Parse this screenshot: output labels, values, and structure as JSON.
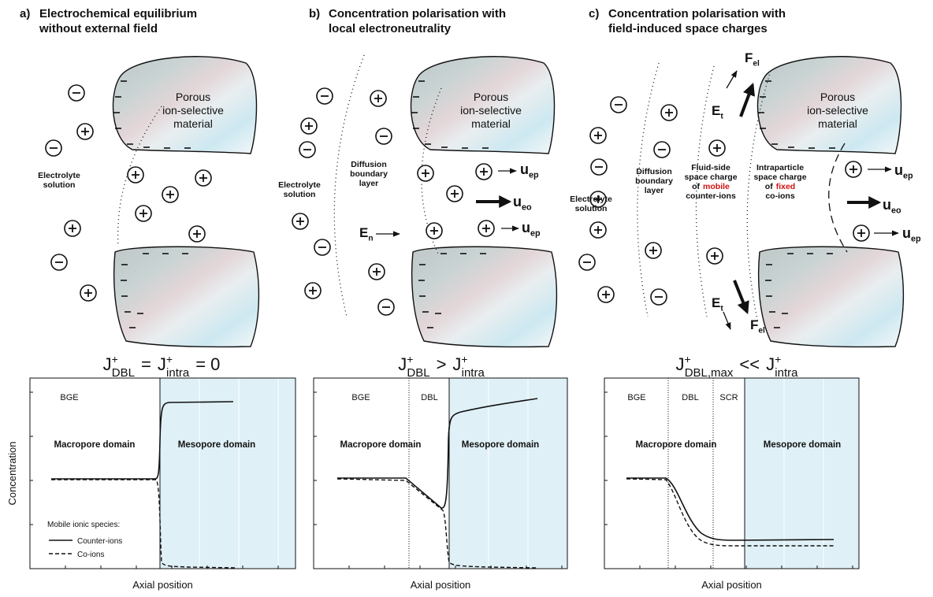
{
  "panels": [
    {
      "label": "a)",
      "title": [
        "Electrochemical equilibrium",
        "without external field"
      ],
      "material": [
        "Porous",
        "ion-selective",
        "material"
      ],
      "regions": [
        [
          [
            "Electrolyte"
          ],
          [
            "solution"
          ]
        ]
      ],
      "arrows": [],
      "equation": [
        {
          "main": "J",
          "sup": "+",
          "sub": "DBL"
        },
        {
          "op": "="
        },
        {
          "main": "J",
          "sup": "+",
          "sub": "intra"
        },
        {
          "op": "= 0"
        }
      ],
      "plot": {
        "zones": [
          "BGE"
        ],
        "domains": [
          "Macropore domain",
          "Mesopore domain"
        ],
        "y_label": "Concentration",
        "x_label": "Axial position",
        "legend": {
          "title": "Mobile ionic species:",
          "entries": [
            "Counter-ions",
            "Co-ions"
          ]
        }
      }
    },
    {
      "label": "b)",
      "title": [
        "Concentration polarisation with",
        "local electroneutrality"
      ],
      "material": [
        "Porous",
        "ion-selective",
        "material"
      ],
      "regions": [
        [
          [
            "Electrolyte"
          ],
          [
            "solution"
          ]
        ],
        [
          [
            "Diffusion"
          ],
          [
            "boundary"
          ],
          [
            "layer"
          ]
        ]
      ],
      "arrows": [
        {
          "main": "E",
          "sub": "n"
        },
        {
          "main": "u",
          "sub": "ep"
        },
        {
          "main": "u",
          "sub": "eo"
        },
        {
          "main": "u",
          "sub": "ep"
        }
      ],
      "equation": [
        {
          "main": "J",
          "sup": "+",
          "sub": "DBL"
        },
        {
          "op": ">"
        },
        {
          "main": "J",
          "sup": "+",
          "sub": "intra"
        }
      ],
      "plot": {
        "zones": [
          "BGE",
          "DBL"
        ],
        "domains": [
          "Macropore domain",
          "Mesopore domain"
        ],
        "x_label": "Axial position"
      }
    },
    {
      "label": "c)",
      "title": [
        "Concentration polarisation with",
        "field-induced space charges"
      ],
      "material": [
        "Porous",
        "ion-selective",
        "material"
      ],
      "regions": [
        [
          [
            "Electrolyte"
          ],
          [
            "solution"
          ]
        ],
        [
          [
            "Diffusion"
          ],
          [
            "boundary"
          ],
          [
            "layer"
          ]
        ],
        [
          [
            "Fluid-side"
          ],
          [
            "space charge"
          ],
          [
            "of",
            {
              "text": "mobile",
              "color": "#d01010"
            }
          ],
          [
            "counter-ions"
          ]
        ],
        [
          [
            "Intraparticle"
          ],
          [
            "space charge"
          ],
          [
            "of",
            {
              "text": "fixed",
              "color": "#d01010"
            }
          ],
          [
            "co-ions"
          ]
        ]
      ],
      "arrows": [
        {
          "main": "E",
          "sub": "t"
        },
        {
          "main": "F",
          "sub": "el"
        },
        {
          "main": "E",
          "sub": "t"
        },
        {
          "main": "F",
          "sub": "el"
        },
        {
          "main": "u",
          "sub": "ep"
        },
        {
          "main": "u",
          "sub": "eo"
        },
        {
          "main": "u",
          "sub": "ep"
        }
      ],
      "equation": [
        {
          "main": "J",
          "sup": "+",
          "sub": "DBL,max"
        },
        {
          "op": "<<"
        },
        {
          "main": "J",
          "sup": "+",
          "sub": "intra"
        }
      ],
      "plot": {
        "zones": [
          "BGE",
          "DBL",
          "SCR"
        ],
        "domains": [
          "Macropore domain",
          "Mesopore domain"
        ],
        "x_label": "Axial position"
      }
    }
  ]
}
